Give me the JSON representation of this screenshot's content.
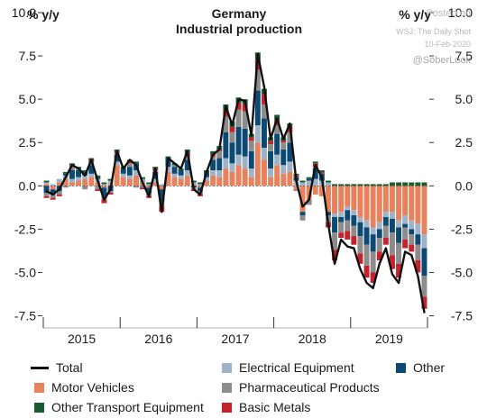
{
  "chart_data": {
    "type": "bar",
    "title": "Germany",
    "subtitle": "Industrial production",
    "ylabel_left": "% y/y",
    "ylabel_right": "% y/y",
    "ylim": [
      -8.2,
      10.0
    ],
    "yticks": [
      "10.0",
      "7.5",
      "5.0",
      "2.5",
      "0.0",
      "-2.5",
      "-5.0",
      "-7.5"
    ],
    "ytick_values": [
      10.0,
      7.5,
      5.0,
      2.5,
      0.0,
      -2.5,
      -5.0,
      -7.5
    ],
    "xticks": [
      "2015",
      "2016",
      "2017",
      "2018",
      "2019"
    ],
    "colors": {
      "Total": "#111111",
      "Motor Vehicles": "#e8825d",
      "Electrical Equipment": "#9fb3c8",
      "Pharmaceutical Products": "#8c8c8c",
      "Other": "#0d4a73",
      "Basic Metals": "#c4232b",
      "Other Transport Equipment": "#1a5c30"
    },
    "x": [
      "2015-01",
      "2015-02",
      "2015-03",
      "2015-04",
      "2015-05",
      "2015-06",
      "2015-07",
      "2015-08",
      "2015-09",
      "2015-10",
      "2015-11",
      "2015-12",
      "2016-01",
      "2016-02",
      "2016-03",
      "2016-04",
      "2016-05",
      "2016-06",
      "2016-07",
      "2016-08",
      "2016-09",
      "2016-10",
      "2016-11",
      "2016-12",
      "2017-01",
      "2017-02",
      "2017-03",
      "2017-04",
      "2017-05",
      "2017-06",
      "2017-07",
      "2017-08",
      "2017-09",
      "2017-10",
      "2017-11",
      "2017-12",
      "2018-01",
      "2018-02",
      "2018-03",
      "2018-04",
      "2018-05",
      "2018-06",
      "2018-07",
      "2018-08",
      "2018-09",
      "2018-10",
      "2018-11",
      "2018-12",
      "2019-01",
      "2019-02",
      "2019-03",
      "2019-04",
      "2019-05",
      "2019-06",
      "2019-07",
      "2019-08",
      "2019-09",
      "2019-10",
      "2019-11",
      "2019-12"
    ],
    "series": [
      {
        "name": "Total",
        "kind": "line",
        "values": [
          -0.3,
          -0.5,
          -0.2,
          0.5,
          1.2,
          1.0,
          0.6,
          1.5,
          0.3,
          -0.8,
          -0.2,
          2.0,
          1.0,
          1.5,
          1.2,
          0.2,
          -0.6,
          1.0,
          -1.5,
          1.6,
          1.3,
          1.0,
          2.0,
          -0.2,
          -0.5,
          0.8,
          1.8,
          2.1,
          4.6,
          3.5,
          5.0,
          4.9,
          2.9,
          7.6,
          5.7,
          2.7,
          3.9,
          2.7,
          3.6,
          0.3,
          -1.2,
          -0.8,
          1.2,
          0.5,
          -2.2,
          -4.5,
          -3.1,
          -3.5,
          -3.6,
          -4.8,
          -5.6,
          -5.9,
          -4.5,
          -3.6,
          -5.1,
          -5.6,
          -3.8,
          -4.0,
          -5.2,
          -7.3
        ]
      },
      {
        "name": "Motor Vehicles",
        "kind": "bar",
        "values": [
          0.1,
          -0.2,
          0.2,
          0.4,
          0.2,
          0.3,
          0.4,
          0.5,
          0.2,
          -0.1,
          0.1,
          1.2,
          0.5,
          0.4,
          0.6,
          0.2,
          -0.1,
          0.2,
          -0.2,
          0.8,
          0.5,
          0.4,
          0.6,
          0.1,
          -0.1,
          0.3,
          0.6,
          0.5,
          1.0,
          0.8,
          1.2,
          1.0,
          0.5,
          2.5,
          1.5,
          0.5,
          1.2,
          0.7,
          0.8,
          -0.2,
          -1.5,
          -0.8,
          -0.5,
          -0.6,
          -1.5,
          -1.6,
          -1.5,
          -1.2,
          -1.4,
          -1.8,
          -2.0,
          -2.4,
          -2.1,
          -1.5,
          -1.5,
          -2.0,
          -1.7,
          -2.0,
          -2.2,
          -2.8
        ]
      },
      {
        "name": "Electrical Equipment",
        "kind": "bar",
        "values": [
          0.1,
          0.1,
          0.2,
          0.2,
          0.2,
          0.2,
          0.2,
          0.2,
          0.2,
          0.1,
          0.2,
          0.2,
          0.2,
          0.2,
          0.3,
          0.2,
          0.1,
          0.2,
          0.1,
          0.3,
          0.2,
          0.2,
          0.3,
          0.1,
          0.1,
          0.2,
          0.3,
          0.4,
          0.6,
          0.5,
          0.6,
          0.7,
          0.5,
          1.0,
          0.7,
          0.5,
          0.6,
          0.5,
          0.6,
          0.3,
          0.2,
          0.3,
          0.4,
          0.3,
          0.2,
          -0.2,
          -0.3,
          -0.2,
          -0.3,
          -0.3,
          -0.4,
          -0.4,
          -0.4,
          -0.3,
          -0.4,
          -0.4,
          -0.5,
          -0.5,
          -0.6,
          -0.8
        ]
      },
      {
        "name": "Other",
        "kind": "bar",
        "values": [
          -0.4,
          -0.3,
          -0.3,
          0.1,
          0.5,
          0.4,
          0.2,
          0.5,
          0.1,
          -0.5,
          -0.3,
          0.4,
          0.3,
          0.5,
          0.4,
          0.0,
          -0.3,
          0.4,
          -0.7,
          0.5,
          0.4,
          0.3,
          0.6,
          -0.1,
          -0.2,
          0.3,
          0.6,
          0.7,
          1.5,
          1.2,
          1.6,
          1.6,
          1.0,
          2.0,
          1.7,
          1.0,
          1.2,
          0.9,
          1.1,
          0.2,
          -0.2,
          0.1,
          0.6,
          0.4,
          -0.2,
          -0.9,
          -0.3,
          -0.6,
          -0.6,
          -0.8,
          -1.0,
          -1.0,
          -0.5,
          -0.5,
          -0.8,
          -0.9,
          -0.2,
          -0.3,
          -0.6,
          -1.6
        ]
      },
      {
        "name": "Pharmaceutical Products",
        "kind": "bar",
        "values": [
          -0.2,
          -0.2,
          -0.2,
          -0.1,
          0.2,
          0.1,
          -0.2,
          0.2,
          -0.2,
          -0.2,
          -0.1,
          0.1,
          0.0,
          0.2,
          -0.1,
          -0.1,
          -0.2,
          0.1,
          -0.3,
          0.0,
          0.1,
          0.0,
          0.2,
          -0.1,
          -0.2,
          0.0,
          0.2,
          0.4,
          0.9,
          0.6,
          1.0,
          1.0,
          0.6,
          1.2,
          0.8,
          0.4,
          0.5,
          0.4,
          0.6,
          -0.1,
          -0.3,
          -0.3,
          0.1,
          0.0,
          -0.4,
          -1.0,
          -0.6,
          -0.6,
          -0.6,
          -1.0,
          -1.2,
          -1.2,
          -0.8,
          -0.7,
          -1.3,
          -1.2,
          -0.7,
          -0.6,
          -0.9,
          -1.2
        ]
      },
      {
        "name": "Basic Metals",
        "kind": "bar",
        "values": [
          -0.1,
          -0.1,
          -0.1,
          0.0,
          0.1,
          0.0,
          0.0,
          0.1,
          -0.1,
          -0.2,
          -0.1,
          0.1,
          0.0,
          0.1,
          0.0,
          -0.1,
          -0.1,
          0.1,
          -0.3,
          0.0,
          0.0,
          0.0,
          0.2,
          -0.1,
          -0.1,
          0.0,
          0.1,
          0.1,
          0.4,
          0.3,
          0.4,
          0.4,
          0.2,
          0.6,
          0.6,
          0.2,
          0.3,
          0.1,
          0.3,
          0.1,
          0.0,
          0.0,
          0.2,
          0.1,
          -0.3,
          -0.6,
          -0.3,
          -0.5,
          -0.5,
          -0.6,
          -0.7,
          -0.6,
          -0.5,
          -0.4,
          -0.8,
          -0.8,
          -0.5,
          -0.4,
          -0.7,
          -0.7
        ]
      },
      {
        "name": "Other Transport Equipment",
        "kind": "bar",
        "values": [
          0.1,
          0.0,
          0.0,
          0.1,
          0.1,
          0.1,
          0.1,
          0.1,
          0.1,
          0.1,
          0.1,
          0.1,
          0.1,
          0.1,
          0.1,
          0.1,
          0.1,
          0.1,
          0.0,
          0.1,
          0.1,
          0.1,
          0.2,
          0.1,
          0.1,
          0.1,
          0.2,
          0.2,
          0.3,
          0.3,
          0.3,
          0.3,
          0.2,
          0.4,
          0.3,
          0.2,
          0.3,
          0.2,
          0.2,
          0.1,
          0.1,
          0.1,
          0.1,
          0.1,
          0.1,
          0.1,
          0.1,
          0.1,
          0.1,
          0.1,
          0.1,
          0.1,
          0.1,
          0.1,
          0.2,
          0.2,
          0.2,
          0.2,
          0.2,
          0.2
        ]
      }
    ],
    "legend_placement": "bottom",
    "grid": false
  },
  "header": {
    "title": "Germany",
    "subtitle": "Industrial production",
    "left_unit": "% y/y",
    "right_unit": "% y/y"
  },
  "credits": {
    "line1": "Posted on",
    "line2": "WSJ: The Daily Shot",
    "line3": "10-Feb-2020",
    "line4": "@SoberLook"
  },
  "legend": {
    "total": "Total",
    "electrical": "Electrical Equipment",
    "other": "Other",
    "motor": "Motor Vehicles",
    "pharma": "Pharmaceutical Products",
    "transport": "Other Transport Equipment",
    "metals": "Basic Metals"
  }
}
